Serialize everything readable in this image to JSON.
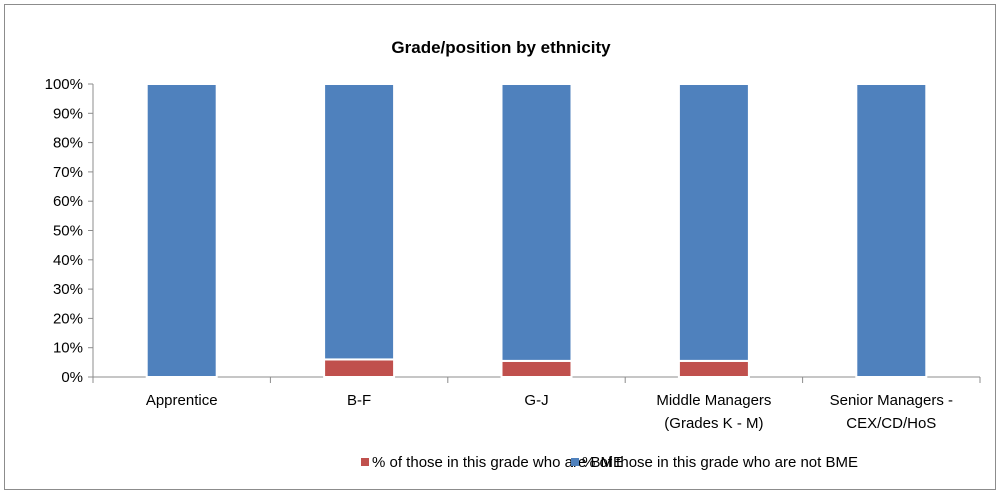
{
  "chart_data": {
    "type": "bar",
    "stacked": true,
    "title": "Grade/position by ethnicity",
    "categories": [
      [
        "Apprentice"
      ],
      [
        "B-F"
      ],
      [
        "G-J"
      ],
      [
        "Middle Managers",
        "(Grades K - M)"
      ],
      [
        "Senior Managers -",
        "CEX/CD/HoS"
      ]
    ],
    "series": [
      {
        "name": "% of those in this grade who are BME",
        "color": "#c0504d",
        "values": [
          0,
          6,
          5.5,
          5.5,
          0
        ]
      },
      {
        "name": "% of those in this grade who are not BME",
        "color": "#4f81bd",
        "values": [
          100,
          94,
          94.5,
          94.5,
          100
        ]
      }
    ],
    "yticks": [
      "0%",
      "10%",
      "20%",
      "30%",
      "40%",
      "50%",
      "60%",
      "70%",
      "80%",
      "90%",
      "100%"
    ],
    "ylim": [
      0,
      100
    ],
    "grid": false,
    "legend_position": "bottom",
    "xlabel": "",
    "ylabel": ""
  }
}
